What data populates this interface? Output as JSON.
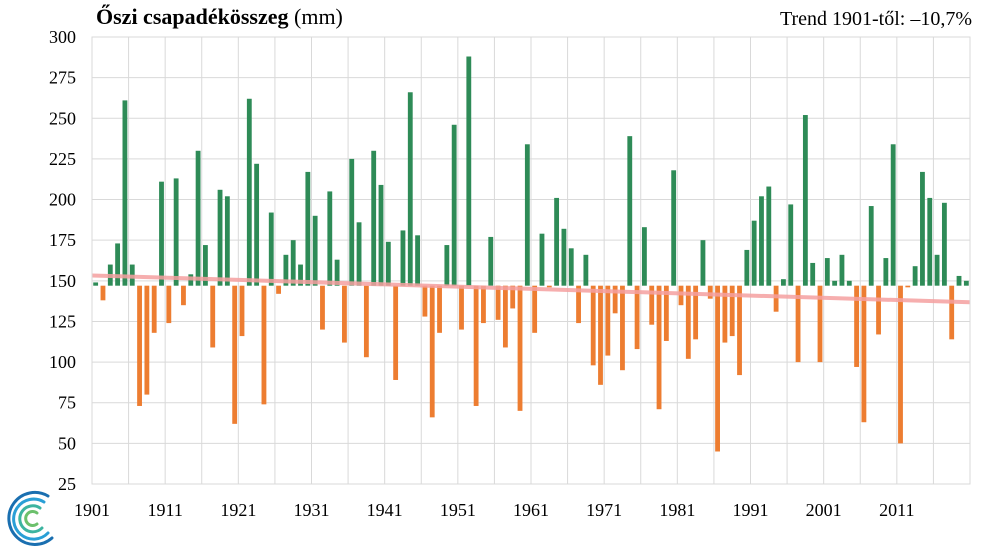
{
  "header": {
    "title_bold": "Őszi csapadékösszeg",
    "title_unit": "(mm)",
    "trend_text": "Trend 1901-től: –10,7%"
  },
  "colors": {
    "positive": "#2e8b57",
    "negative": "#ed7d31",
    "trend_line": "#f4a0a0",
    "grid": "#d9d9d9",
    "logo": "#1a6fb0"
  },
  "logo": {
    "icon": "swirl-logo-icon"
  },
  "chart_data": {
    "type": "bar",
    "title": "Őszi csapadékösszeg (mm)",
    "subtitle": "Trend 1901-től: –10,7%",
    "xlabel": "",
    "ylabel": "",
    "baseline": 147,
    "ylim": [
      25,
      300
    ],
    "yticks": [
      25,
      50,
      75,
      100,
      125,
      150,
      175,
      200,
      225,
      250,
      275,
      300
    ],
    "xtick_labels": [
      "1901",
      "1911",
      "1921",
      "1931",
      "1941",
      "1951",
      "1961",
      "1971",
      "1981",
      "1991",
      "2001",
      "2011"
    ],
    "grid": true,
    "x_start": 1901,
    "x_end": 2020,
    "values": [
      149,
      138,
      160,
      173,
      261,
      160,
      73,
      80,
      118,
      211,
      124,
      213,
      135,
      154,
      230,
      172,
      109,
      206,
      202,
      62,
      116,
      262,
      222,
      74,
      192,
      142,
      166,
      175,
      160,
      217,
      190,
      120,
      205,
      163,
      112,
      225,
      186,
      103,
      230,
      209,
      174,
      89,
      181,
      266,
      178,
      128,
      66,
      118,
      172,
      246,
      120,
      288,
      73,
      124,
      177,
      126,
      109,
      133,
      70,
      234,
      118,
      179,
      146,
      201,
      182,
      170,
      124,
      166,
      98,
      86,
      104,
      130,
      95,
      239,
      108,
      183,
      123,
      71,
      113,
      218,
      135,
      102,
      114,
      175,
      139,
      45,
      112,
      116,
      92,
      169,
      187,
      202,
      208,
      131,
      151,
      197,
      100,
      252,
      161,
      100,
      164,
      150,
      166,
      150,
      97,
      63,
      196,
      117,
      164,
      234,
      50,
      146,
      159,
      217,
      201,
      166,
      198,
      114,
      153,
      150
    ],
    "trend": [
      153.3,
      136.8
    ]
  }
}
